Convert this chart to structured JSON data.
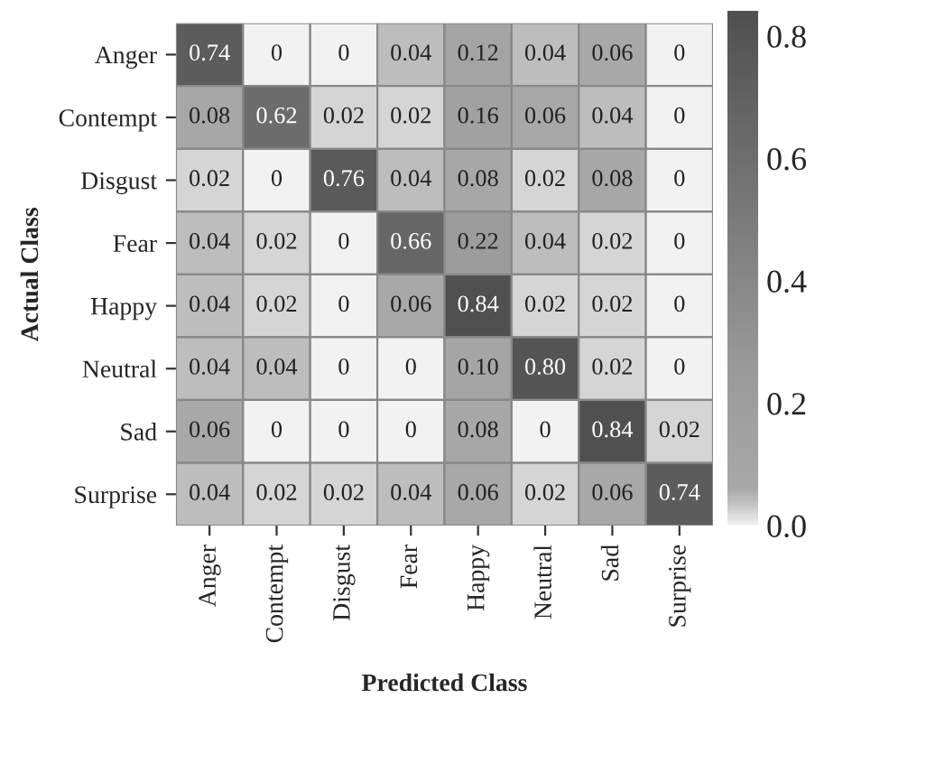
{
  "chart_data": {
    "type": "heatmap",
    "xlabel": "Predicted Class",
    "ylabel": "Actual Class",
    "categories": [
      "Anger",
      "Contempt",
      "Disgust",
      "Fear",
      "Happy",
      "Neutral",
      "Sad",
      "Surprise"
    ],
    "y_categories": [
      "Anger",
      "Contempt",
      "Disgust",
      "Fear",
      "Happy",
      "Neutral",
      "Sad",
      "Surprise"
    ],
    "cells": [
      [
        0.74,
        0,
        0,
        0.04,
        0.12,
        0.04,
        0.06,
        0
      ],
      [
        0.08,
        0.62,
        0.02,
        0.02,
        0.16,
        0.06,
        0.04,
        0
      ],
      [
        0.02,
        0,
        0.76,
        0.04,
        0.08,
        0.02,
        0.08,
        0
      ],
      [
        0.04,
        0.02,
        0,
        0.66,
        0.22,
        0.04,
        0.02,
        0
      ],
      [
        0.04,
        0.02,
        0,
        0.06,
        0.84,
        0.02,
        0.02,
        0
      ],
      [
        0.04,
        0.04,
        0,
        0,
        0.1,
        0.8,
        0.02,
        0
      ],
      [
        0.06,
        0,
        0,
        0,
        0.08,
        0,
        0.84,
        0.02
      ],
      [
        0.04,
        0.02,
        0.02,
        0.04,
        0.06,
        0.02,
        0.06,
        0.74
      ]
    ],
    "cell_labels": [
      [
        "0.74",
        "0",
        "0",
        "0.04",
        "0.12",
        "0.04",
        "0.06",
        "0"
      ],
      [
        "0.08",
        "0.62",
        "0.02",
        "0.02",
        "0.16",
        "0.06",
        "0.04",
        "0"
      ],
      [
        "0.02",
        "0",
        "0.76",
        "0.04",
        "0.08",
        "0.02",
        "0.08",
        "0"
      ],
      [
        "0.04",
        "0.02",
        "0",
        "0.66",
        "0.22",
        "0.04",
        "0.02",
        "0"
      ],
      [
        "0.04",
        "0.02",
        "0",
        "0.06",
        "0.84",
        "0.02",
        "0.02",
        "0"
      ],
      [
        "0.04",
        "0.04",
        "0",
        "0",
        "0.10",
        "0.80",
        "0.02",
        "0"
      ],
      [
        "0.06",
        "0",
        "0",
        "0",
        "0.08",
        "0",
        "0.84",
        "0.02"
      ],
      [
        "0.04",
        "0.02",
        "0.02",
        "0.04",
        "0.06",
        "0.02",
        "0.06",
        "0.74"
      ]
    ],
    "clim": [
      0,
      0.84
    ],
    "cticks": [
      {
        "value": 0,
        "label": "0.0"
      },
      0.2,
      0.4,
      0.6,
      0.8
    ]
  }
}
